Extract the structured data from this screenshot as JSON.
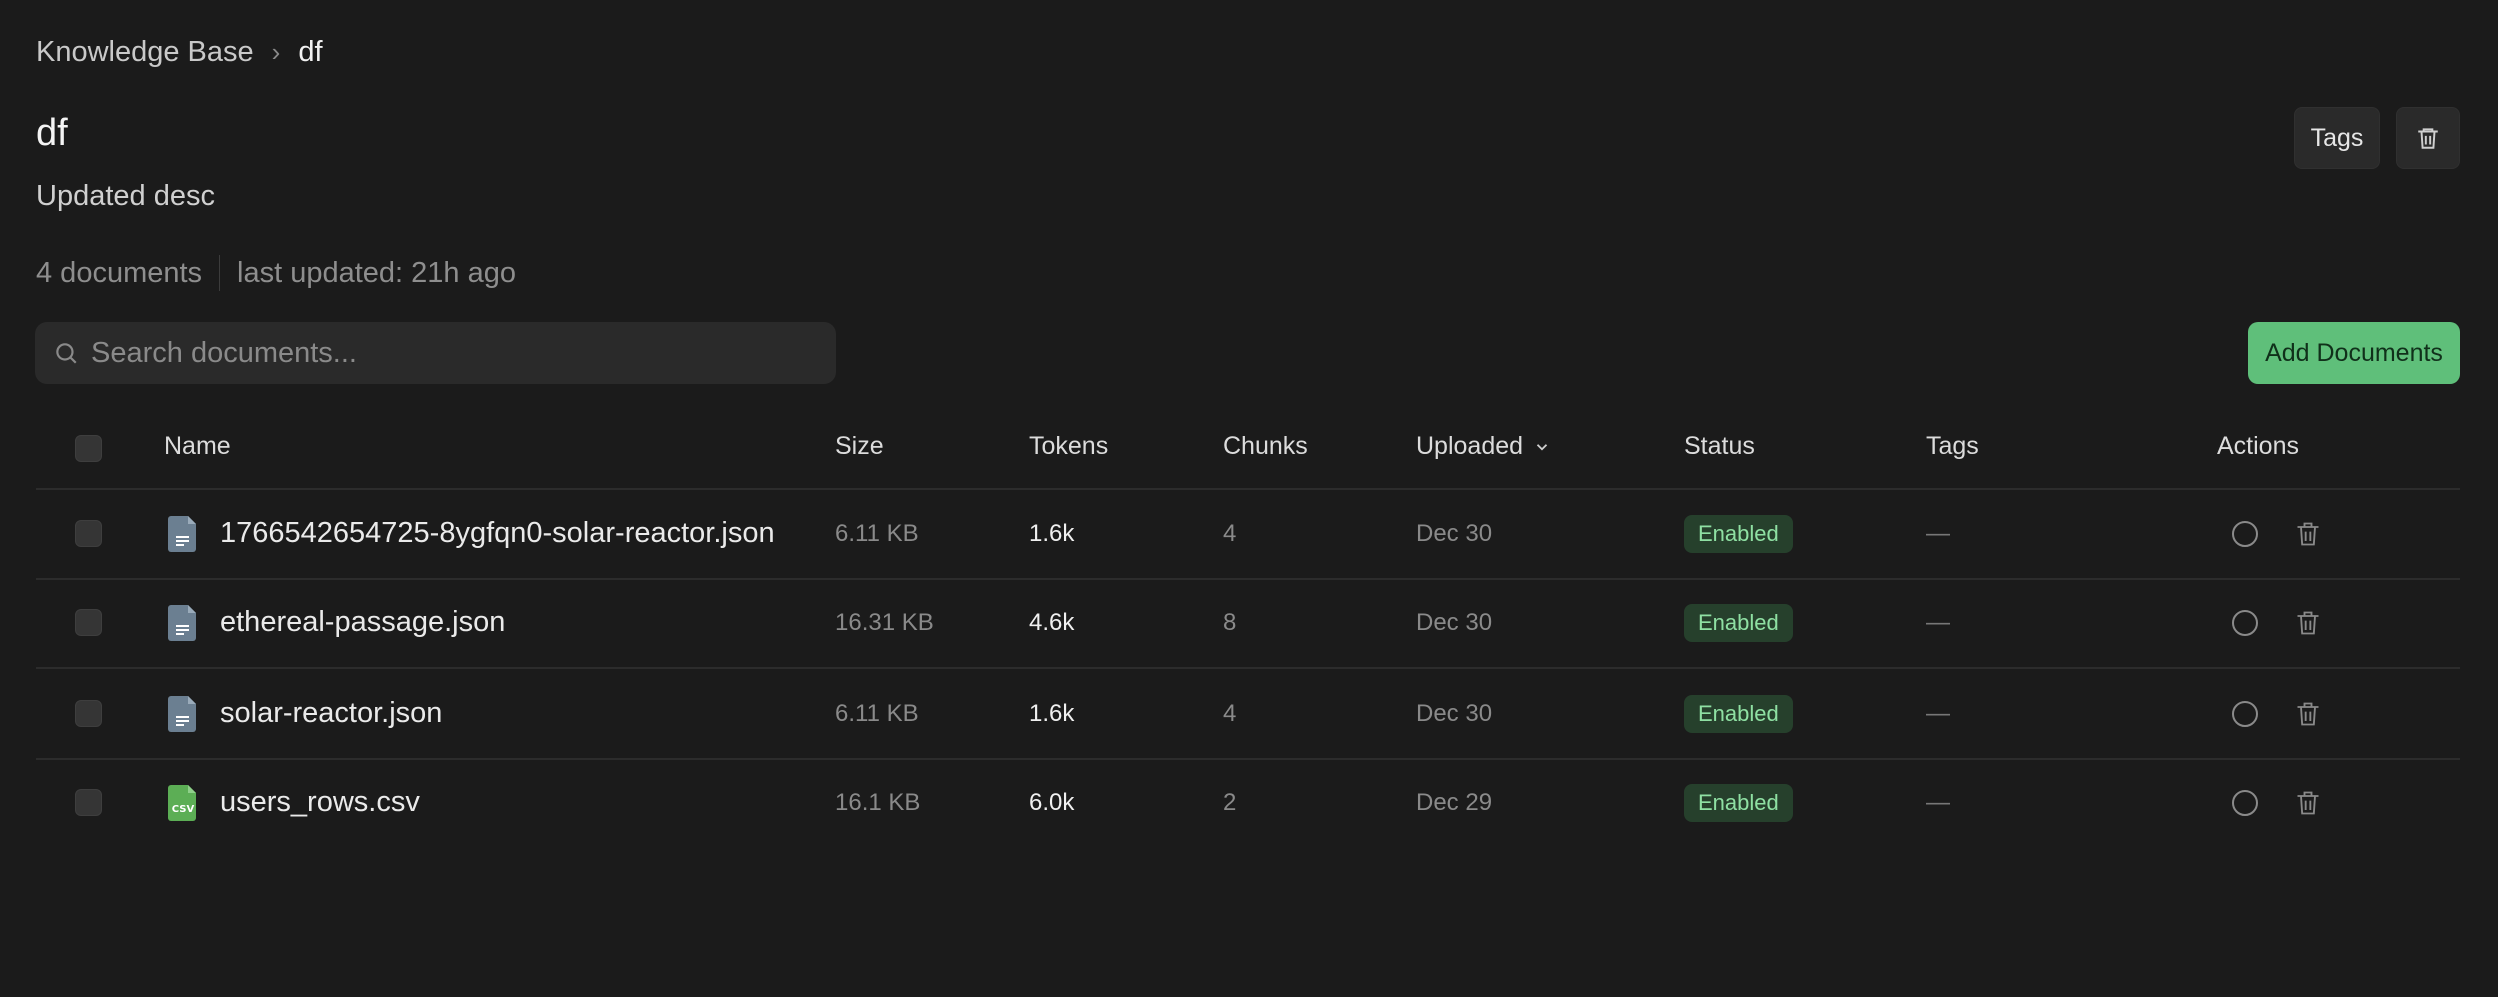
{
  "breadcrumb": {
    "root": "Knowledge Base",
    "current": "df"
  },
  "header": {
    "title": "df",
    "description": "Updated desc",
    "doc_count": "4 documents",
    "last_updated": "last updated: 21h ago",
    "tags_button": "Tags"
  },
  "search": {
    "placeholder": "Search documents...",
    "value": ""
  },
  "add_button": "Add Documents",
  "table": {
    "columns": {
      "name": "Name",
      "size": "Size",
      "tokens": "Tokens",
      "chunks": "Chunks",
      "uploaded": "Uploaded",
      "status": "Status",
      "tags": "Tags",
      "actions": "Actions"
    },
    "rows": [
      {
        "name": "1766542654725-8ygfqn0-solar-reactor.json",
        "type": "json",
        "size": "6.11 KB",
        "tokens": "1.6k",
        "chunks": "4",
        "uploaded": "Dec 30",
        "status": "Enabled",
        "tags": "—"
      },
      {
        "name": "ethereal-passage.json",
        "type": "json",
        "size": "16.31 KB",
        "tokens": "4.6k",
        "chunks": "8",
        "uploaded": "Dec 30",
        "status": "Enabled",
        "tags": "—"
      },
      {
        "name": "solar-reactor.json",
        "type": "json",
        "size": "6.11 KB",
        "tokens": "1.6k",
        "chunks": "4",
        "uploaded": "Dec 30",
        "status": "Enabled",
        "tags": "—"
      },
      {
        "name": "users_rows.csv",
        "type": "csv",
        "size": "16.1 KB",
        "tokens": "6.0k",
        "chunks": "2",
        "uploaded": "Dec 29",
        "status": "Enabled",
        "tags": "—"
      }
    ]
  },
  "icons": {
    "csv_label": "CSV"
  },
  "colors": {
    "accent": "#5fbf7a",
    "enabled_bg": "#26402c",
    "enabled_text": "#8fe0a3",
    "json_icon": "#6b7f91",
    "csv_icon": "#5cae55"
  }
}
